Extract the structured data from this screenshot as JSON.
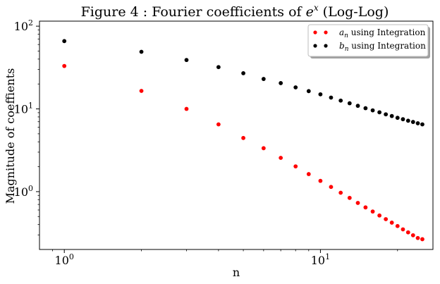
{
  "chart_data": {
    "type": "scatter",
    "title": "Figure 4 : Fourier coefficients of e^x (Log-Log)",
    "title_parts": {
      "prefix": "Figure 4 : Fourier coefficients of ",
      "base": "e",
      "exponent": "x",
      "suffix": " (Log-Log)"
    },
    "xlabel": "n",
    "ylabel": "Magnitude of coeffients",
    "xscale": "log",
    "yscale": "log",
    "xlim": [
      0.8,
      27.5
    ],
    "ylim": [
      0.2,
      115
    ],
    "x_ticks": [
      {
        "value": 1,
        "base": "10",
        "exp": "0"
      },
      {
        "value": 10,
        "base": "10",
        "exp": "1"
      }
    ],
    "y_ticks": [
      {
        "value": 1,
        "base": "10",
        "exp": "0"
      },
      {
        "value": 10,
        "base": "10",
        "exp": "1"
      },
      {
        "value": 100,
        "base": "10",
        "exp": "2"
      }
    ],
    "legend_position": "top-right",
    "x": [
      1,
      2,
      3,
      4,
      5,
      6,
      7,
      8,
      9,
      10,
      11,
      12,
      13,
      14,
      15,
      16,
      17,
      18,
      19,
      20,
      21,
      22,
      23,
      24,
      25
    ],
    "series": [
      {
        "name": "a_n using Integration",
        "label_parts": {
          "sym": "a",
          "sub": "n",
          "rest": " using Integration"
        },
        "color": "#ff0000",
        "values": [
          33.0,
          16.5,
          10.0,
          6.5,
          4.45,
          3.35,
          2.56,
          2.02,
          1.63,
          1.35,
          1.14,
          0.97,
          0.84,
          0.73,
          0.645,
          0.575,
          0.515,
          0.465,
          0.422,
          0.384,
          0.35,
          0.322,
          0.297,
          0.275,
          0.266
        ]
      },
      {
        "name": "b_n using Integration",
        "label_parts": {
          "sym": "b",
          "sub": "n",
          "rest": " using Integration"
        },
        "color": "#000000",
        "values": [
          66.0,
          49.0,
          39.0,
          32.0,
          27.0,
          23.0,
          20.5,
          18.2,
          16.4,
          15.0,
          13.7,
          12.6,
          11.7,
          10.9,
          10.2,
          9.6,
          9.1,
          8.6,
          8.2,
          7.8,
          7.5,
          7.2,
          6.95,
          6.7,
          6.5
        ]
      }
    ]
  }
}
